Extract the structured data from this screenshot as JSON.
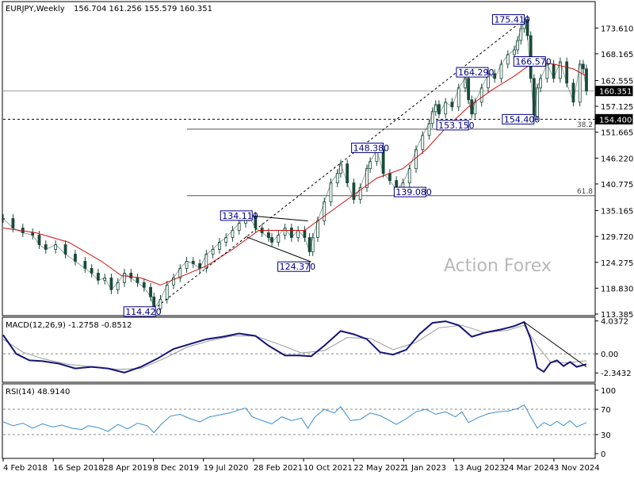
{
  "chart_data": {
    "type": "candlestick",
    "symbol_header": "EURJPY,Weekly",
    "ohlc_header": "156.704 161.256 155.579 160.351",
    "watermark": "Action Forex",
    "main_axis": {
      "ylim": [
        113.385,
        176.5
      ],
      "ticks": [
        "173.610",
        "168.165",
        "162.555",
        "157.125",
        "151.665",
        "146.220",
        "140.775",
        "135.165",
        "129.720",
        "124.275",
        "118.830",
        "113.385"
      ],
      "tick_values": [
        173.61,
        168.165,
        162.555,
        157.125,
        151.665,
        146.22,
        140.775,
        135.165,
        129.72,
        124.275,
        118.83,
        113.385
      ]
    },
    "price_tags": [
      {
        "label": "160.351",
        "value": 160.351
      },
      {
        "label": "154.400",
        "value": 154.4
      }
    ],
    "x_labels": [
      "4 Feb 2018",
      "16 Sep 2018",
      "28 Apr 2019",
      "8 Dec 2019",
      "19 Jul 2020",
      "28 Feb 2021",
      "10 Oct 2021",
      "22 May 2022",
      "1 Jan 2023",
      "13 Aug 2023",
      "24 Mar 2024",
      "3 Nov 2024"
    ],
    "weekly_close_path": [
      [
        0,
        133.5
      ],
      [
        6,
        131.5
      ],
      [
        12,
        130.5
      ],
      [
        18,
        130
      ],
      [
        22,
        128
      ],
      [
        26,
        127
      ],
      [
        32,
        128
      ],
      [
        38,
        126
      ],
      [
        44,
        124.5
      ],
      [
        50,
        123
      ],
      [
        54,
        122
      ],
      [
        58,
        120.5
      ],
      [
        62,
        121
      ],
      [
        66,
        118.5
      ],
      [
        70,
        120
      ],
      [
        74,
        122
      ],
      [
        78,
        121
      ],
      [
        82,
        120
      ],
      [
        86,
        119
      ],
      [
        90,
        117
      ],
      [
        92,
        114.5
      ],
      [
        96,
        116.5
      ],
      [
        100,
        119.5
      ],
      [
        104,
        121
      ],
      [
        108,
        123
      ],
      [
        112,
        124.5
      ],
      [
        116,
        124
      ],
      [
        120,
        123
      ],
      [
        124,
        126
      ],
      [
        128,
        127
      ],
      [
        132,
        128.5
      ],
      [
        136,
        129.5
      ],
      [
        140,
        131
      ],
      [
        144,
        132.5
      ],
      [
        148,
        133.8
      ],
      [
        150,
        134
      ],
      [
        154,
        131.5
      ],
      [
        158,
        130.5
      ],
      [
        162,
        129.5
      ],
      [
        164,
        128.5
      ],
      [
        168,
        130
      ],
      [
        172,
        131.5
      ],
      [
        176,
        129.5
      ],
      [
        180,
        131
      ],
      [
        184,
        129.5
      ],
      [
        187,
        126.5
      ],
      [
        189,
        129.5
      ],
      [
        192,
        133
      ],
      [
        196,
        137
      ],
      [
        200,
        141
      ],
      [
        204,
        143
      ],
      [
        206,
        145
      ],
      [
        210,
        141
      ],
      [
        214,
        137.5
      ],
      [
        218,
        140
      ],
      [
        222,
        144
      ],
      [
        224,
        145.5
      ],
      [
        228,
        148
      ],
      [
        232,
        143
      ],
      [
        236,
        141.5
      ],
      [
        240,
        139.5
      ],
      [
        244,
        141
      ],
      [
        248,
        144
      ],
      [
        252,
        148
      ],
      [
        256,
        151
      ],
      [
        260,
        153.5
      ],
      [
        262,
        156
      ],
      [
        264,
        157.5
      ],
      [
        266,
        155.5
      ],
      [
        270,
        158
      ],
      [
        274,
        157
      ],
      [
        278,
        161
      ],
      [
        282,
        163
      ],
      [
        284,
        158.5
      ],
      [
        286,
        155.5
      ],
      [
        288,
        158
      ],
      [
        292,
        161
      ],
      [
        296,
        164
      ],
      [
        300,
        163
      ],
      [
        304,
        166
      ],
      [
        308,
        168
      ],
      [
        312,
        169
      ],
      [
        314,
        171
      ],
      [
        316,
        173.5
      ],
      [
        318,
        175.4
      ],
      [
        320,
        172
      ],
      [
        322,
        163
      ],
      [
        324,
        155
      ],
      [
        326,
        161
      ],
      [
        328,
        163
      ],
      [
        332,
        166
      ],
      [
        336,
        163
      ],
      [
        340,
        166.5
      ],
      [
        344,
        162
      ],
      [
        348,
        158
      ],
      [
        352,
        166
      ],
      [
        354,
        165
      ],
      [
        356,
        160.351
      ]
    ],
    "moving_average_path": [
      [
        0,
        131.5
      ],
      [
        20,
        130.5
      ],
      [
        40,
        128.5
      ],
      [
        60,
        124.5
      ],
      [
        72,
        121.5
      ],
      [
        84,
        121
      ],
      [
        96,
        119.5
      ],
      [
        110,
        121.5
      ],
      [
        124,
        123.5
      ],
      [
        140,
        127
      ],
      [
        156,
        131
      ],
      [
        170,
        131
      ],
      [
        184,
        131
      ],
      [
        196,
        134
      ],
      [
        212,
        138
      ],
      [
        228,
        142
      ],
      [
        244,
        144
      ],
      [
        258,
        148
      ],
      [
        270,
        152.5
      ],
      [
        284,
        157
      ],
      [
        298,
        160.5
      ],
      [
        312,
        163.5
      ],
      [
        324,
        166.5
      ],
      [
        336,
        166
      ],
      [
        348,
        165
      ],
      [
        356,
        163.5
      ]
    ],
    "x_index_max": 356,
    "annotations": [
      {
        "label": "175.410",
        "x": 318,
        "y": 175.41
      },
      {
        "label": "166.570",
        "x": 331,
        "y": 166.57
      },
      {
        "label": "164.290",
        "x": 296,
        "y": 164.29
      },
      {
        "label": "153.150",
        "x": 284,
        "y": 153.15
      },
      {
        "label": "154.400",
        "x": 324,
        "y": 154.4
      },
      {
        "label": "148.380",
        "x": 232,
        "y": 148.38
      },
      {
        "label": "139.080",
        "x": 258,
        "y": 139.08
      },
      {
        "label": "134.110",
        "x": 152,
        "y": 134.11
      },
      {
        "label": "124.370",
        "x": 187,
        "y": 124.37
      },
      {
        "label": "114.420",
        "x": 92,
        "y": 114.42
      }
    ],
    "levels": [
      {
        "label": "38.2",
        "value": 152.3
      },
      {
        "label": "61.8",
        "value": 138.3
      }
    ],
    "reference_line": 160.351,
    "support_line": 154.4,
    "macd": {
      "title": "MACD(12,26,9) -1.2758 -0.8512",
      "ylim": [
        -3.1,
        4.3
      ],
      "ticks": [
        "4.0372",
        "0.00",
        "-2.3432"
      ],
      "tick_values": [
        4.0372,
        0.0,
        -2.3432
      ],
      "macd_path": [
        [
          0,
          2.3
        ],
        [
          8,
          0
        ],
        [
          16,
          -0.8
        ],
        [
          24,
          -0.9
        ],
        [
          34,
          -1.2
        ],
        [
          44,
          -1.8
        ],
        [
          54,
          -1.6
        ],
        [
          64,
          -1.8
        ],
        [
          74,
          -2.3
        ],
        [
          84,
          -1.6
        ],
        [
          94,
          -0.6
        ],
        [
          104,
          0.6
        ],
        [
          114,
          1.2
        ],
        [
          124,
          1.8
        ],
        [
          134,
          2.1
        ],
        [
          144,
          2.5
        ],
        [
          154,
          2.2
        ],
        [
          162,
          1.0
        ],
        [
          172,
          -0.2
        ],
        [
          180,
          -0.2
        ],
        [
          188,
          -0.3
        ],
        [
          196,
          1.0
        ],
        [
          206,
          2.8
        ],
        [
          214,
          2.4
        ],
        [
          222,
          1.8
        ],
        [
          230,
          0.2
        ],
        [
          238,
          -0.1
        ],
        [
          246,
          0.5
        ],
        [
          254,
          2.4
        ],
        [
          262,
          3.8
        ],
        [
          270,
          4.0
        ],
        [
          278,
          3.5
        ],
        [
          286,
          2.1
        ],
        [
          294,
          2.6
        ],
        [
          304,
          3.0
        ],
        [
          312,
          3.4
        ],
        [
          318,
          3.9
        ],
        [
          322,
          1.8
        ],
        [
          326,
          -1.7
        ],
        [
          330,
          -2.2
        ],
        [
          334,
          -1.1
        ],
        [
          338,
          -0.8
        ],
        [
          342,
          -1.5
        ],
        [
          346,
          -1.0
        ],
        [
          350,
          -1.6
        ],
        [
          356,
          -1.2758
        ]
      ],
      "signal_path": [
        [
          0,
          1.8
        ],
        [
          12,
          0.2
        ],
        [
          24,
          -0.6
        ],
        [
          40,
          -1.3
        ],
        [
          56,
          -1.6
        ],
        [
          70,
          -1.9
        ],
        [
          84,
          -1.8
        ],
        [
          98,
          -0.6
        ],
        [
          112,
          0.8
        ],
        [
          126,
          1.6
        ],
        [
          140,
          2.2
        ],
        [
          154,
          2.2
        ],
        [
          168,
          1.2
        ],
        [
          182,
          0.1
        ],
        [
          196,
          0.4
        ],
        [
          210,
          2.0
        ],
        [
          224,
          1.9
        ],
        [
          238,
          0.5
        ],
        [
          252,
          1.4
        ],
        [
          266,
          3.2
        ],
        [
          280,
          3.5
        ],
        [
          294,
          2.6
        ],
        [
          308,
          2.9
        ],
        [
          318,
          3.5
        ],
        [
          326,
          1.0
        ],
        [
          334,
          -1.0
        ],
        [
          344,
          -1.1
        ],
        [
          356,
          -0.8512
        ]
      ],
      "trendline": [
        [
          318,
          3.9
        ],
        [
          356,
          -1.6
        ]
      ]
    },
    "rsi": {
      "title": "RSI(14) 48.9140",
      "ylim": [
        0,
        100
      ],
      "ticks": [
        "100",
        "70",
        "30",
        "0"
      ],
      "tick_values": [
        100,
        70,
        30,
        0
      ],
      "rsi_path": [
        [
          0,
          50
        ],
        [
          6,
          44
        ],
        [
          12,
          48
        ],
        [
          18,
          40
        ],
        [
          24,
          47
        ],
        [
          30,
          42
        ],
        [
          36,
          45
        ],
        [
          42,
          40
        ],
        [
          48,
          38
        ],
        [
          52,
          44
        ],
        [
          58,
          41
        ],
        [
          64,
          35
        ],
        [
          70,
          46
        ],
        [
          76,
          39
        ],
        [
          82,
          48
        ],
        [
          88,
          44
        ],
        [
          92,
          33
        ],
        [
          96,
          45
        ],
        [
          102,
          59
        ],
        [
          108,
          62
        ],
        [
          114,
          55
        ],
        [
          120,
          50
        ],
        [
          126,
          58
        ],
        [
          132,
          61
        ],
        [
          138,
          64
        ],
        [
          144,
          69
        ],
        [
          148,
          72
        ],
        [
          152,
          58
        ],
        [
          158,
          52
        ],
        [
          164,
          47
        ],
        [
          170,
          58
        ],
        [
          176,
          52
        ],
        [
          182,
          56
        ],
        [
          186,
          40
        ],
        [
          190,
          57
        ],
        [
          196,
          70
        ],
        [
          202,
          64
        ],
        [
          206,
          74
        ],
        [
          212,
          52
        ],
        [
          218,
          54
        ],
        [
          224,
          64
        ],
        [
          230,
          60
        ],
        [
          236,
          52
        ],
        [
          240,
          46
        ],
        [
          246,
          55
        ],
        [
          252,
          66
        ],
        [
          258,
          70
        ],
        [
          264,
          62
        ],
        [
          270,
          66
        ],
        [
          276,
          58
        ],
        [
          280,
          66
        ],
        [
          284,
          49
        ],
        [
          290,
          57
        ],
        [
          296,
          63
        ],
        [
          302,
          66
        ],
        [
          308,
          67
        ],
        [
          314,
          71
        ],
        [
          318,
          77
        ],
        [
          322,
          58
        ],
        [
          326,
          40
        ],
        [
          330,
          49
        ],
        [
          334,
          44
        ],
        [
          338,
          51
        ],
        [
          342,
          44
        ],
        [
          346,
          52
        ],
        [
          350,
          42
        ],
        [
          356,
          48.914
        ]
      ]
    }
  }
}
